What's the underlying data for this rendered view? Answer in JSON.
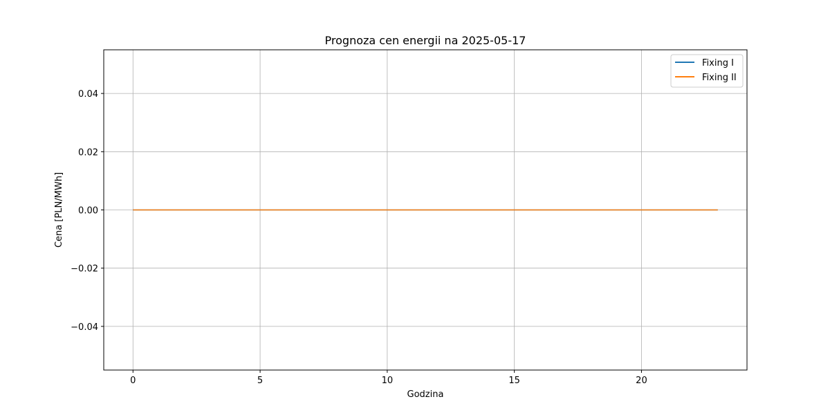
{
  "chart_data": {
    "type": "line",
    "title": "Prognoza cen energii na 2025-05-17",
    "xlabel": "Godzina",
    "ylabel": "Cena [PLN/MWh]",
    "xlim": [
      -1.15,
      24.15
    ],
    "ylim": [
      -0.055,
      0.055
    ],
    "xticks": [
      0,
      5,
      10,
      15,
      20
    ],
    "xtick_labels": [
      "0",
      "5",
      "10",
      "15",
      "20"
    ],
    "yticks": [
      -0.04,
      -0.02,
      0.0,
      0.02,
      0.04
    ],
    "ytick_labels": [
      "−0.04",
      "−0.02",
      "0.00",
      "0.02",
      "0.04"
    ],
    "grid": true,
    "legend_position": "top-right",
    "x": [
      0,
      1,
      2,
      3,
      4,
      5,
      6,
      7,
      8,
      9,
      10,
      11,
      12,
      13,
      14,
      15,
      16,
      17,
      18,
      19,
      20,
      21,
      22,
      23
    ],
    "series": [
      {
        "name": "Fixing I",
        "color": "#1f77b4",
        "values": [
          0,
          0,
          0,
          0,
          0,
          0,
          0,
          0,
          0,
          0,
          0,
          0,
          0,
          0,
          0,
          0,
          0,
          0,
          0,
          0,
          0,
          0,
          0,
          0
        ]
      },
      {
        "name": "Fixing II",
        "color": "#ff7f0e",
        "values": [
          0,
          0,
          0,
          0,
          0,
          0,
          0,
          0,
          0,
          0,
          0,
          0,
          0,
          0,
          0,
          0,
          0,
          0,
          0,
          0,
          0,
          0,
          0,
          0
        ]
      }
    ]
  }
}
